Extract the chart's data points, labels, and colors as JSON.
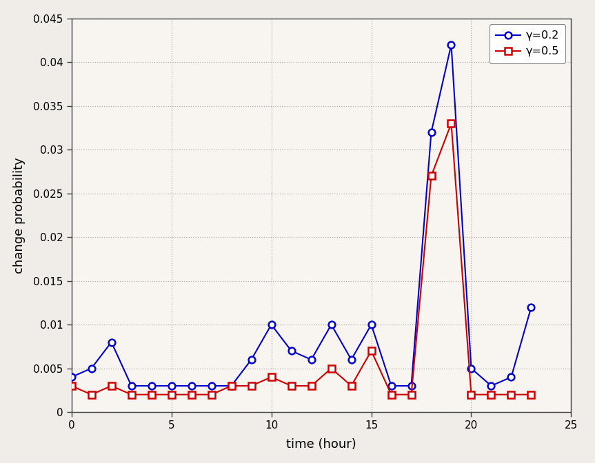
{
  "hours": [
    0,
    1,
    2,
    3,
    4,
    5,
    6,
    7,
    8,
    9,
    10,
    11,
    12,
    13,
    14,
    15,
    16,
    17,
    18,
    19,
    20,
    21,
    22,
    23
  ],
  "gamma02": [
    0.004,
    0.005,
    0.008,
    0.003,
    0.003,
    0.003,
    0.003,
    0.003,
    0.003,
    0.006,
    0.01,
    0.007,
    0.006,
    0.01,
    0.006,
    0.01,
    0.003,
    0.003,
    0.032,
    0.042,
    0.005,
    0.003,
    0.004,
    0.012
  ],
  "gamma05": [
    0.003,
    0.002,
    0.003,
    0.002,
    0.002,
    0.002,
    0.002,
    0.002,
    0.003,
    0.003,
    0.004,
    0.003,
    0.003,
    0.005,
    0.003,
    0.007,
    0.002,
    0.002,
    0.027,
    0.033,
    0.002,
    0.002,
    0.002,
    0.002
  ],
  "blue_color": "#0000cc",
  "red_color": "#cc0000",
  "xlabel": "time (hour)",
  "ylabel": "change probability",
  "xlim": [
    0,
    25
  ],
  "ylim": [
    0,
    0.045
  ],
  "yticks": [
    0,
    0.005,
    0.01,
    0.015,
    0.02,
    0.025,
    0.03,
    0.035,
    0.04,
    0.045
  ],
  "xticks": [
    0,
    5,
    10,
    15,
    20,
    25
  ],
  "legend_gamma02": "γ=0.2",
  "legend_gamma05": "γ=0.5",
  "fig_bg_color": "#f0ede8",
  "axes_bg_color": "#f8f5f0",
  "grid_color": "#b0b0b0",
  "spine_color": "#404040"
}
